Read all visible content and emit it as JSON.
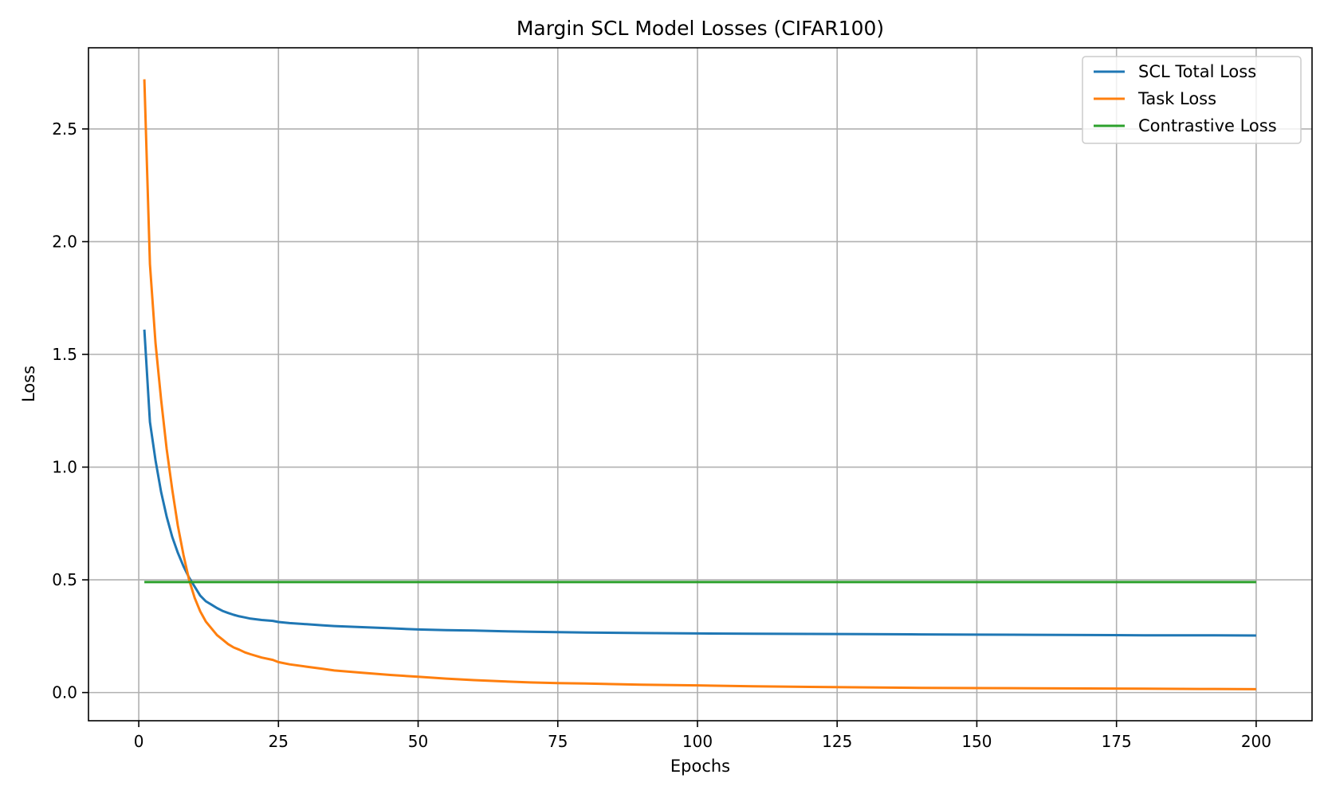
{
  "chart_data": {
    "type": "line",
    "title": "Margin SCL Model Losses (CIFAR100)",
    "xlabel": "Epochs",
    "ylabel": "Loss",
    "xlim": [
      -9,
      210
    ],
    "ylim": [
      -0.125,
      2.86
    ],
    "xticks": [
      0,
      25,
      50,
      75,
      100,
      125,
      150,
      175,
      200
    ],
    "xtick_labels": [
      "0",
      "25",
      "50",
      "75",
      "100",
      "125",
      "150",
      "175",
      "200"
    ],
    "yticks": [
      0.0,
      0.5,
      1.0,
      1.5,
      2.0,
      2.5
    ],
    "ytick_labels": [
      "0.0",
      "0.5",
      "1.0",
      "1.5",
      "2.0",
      "2.5"
    ],
    "grid": true,
    "legend_position": "top-right",
    "series": [
      {
        "name": "SCL Total Loss",
        "color": "#1f77b4",
        "x": [
          1,
          2,
          3,
          4,
          5,
          6,
          7,
          8,
          9,
          10,
          11,
          12,
          13,
          14,
          15,
          16,
          17,
          18,
          19,
          20,
          22,
          24,
          25,
          27,
          30,
          33,
          35,
          40,
          45,
          50,
          55,
          60,
          65,
          70,
          75,
          80,
          90,
          100,
          110,
          120,
          130,
          140,
          150,
          160,
          170,
          180,
          190,
          200
        ],
        "values": [
          1.61,
          1.2,
          1.03,
          0.89,
          0.78,
          0.69,
          0.62,
          0.56,
          0.51,
          0.47,
          0.43,
          0.405,
          0.39,
          0.375,
          0.362,
          0.353,
          0.345,
          0.338,
          0.333,
          0.328,
          0.322,
          0.318,
          0.313,
          0.308,
          0.303,
          0.298,
          0.295,
          0.29,
          0.285,
          0.28,
          0.277,
          0.275,
          0.272,
          0.27,
          0.268,
          0.266,
          0.264,
          0.262,
          0.261,
          0.26,
          0.259,
          0.258,
          0.257,
          0.256,
          0.255,
          0.254,
          0.254,
          0.253
        ]
      },
      {
        "name": "Task Loss",
        "color": "#ff7f0e",
        "x": [
          1,
          2,
          3,
          4,
          5,
          6,
          7,
          8,
          9,
          10,
          11,
          12,
          13,
          14,
          15,
          16,
          17,
          18,
          19,
          20,
          22,
          24,
          25,
          27,
          30,
          33,
          35,
          40,
          45,
          50,
          55,
          60,
          65,
          70,
          75,
          80,
          90,
          100,
          110,
          120,
          130,
          140,
          150,
          160,
          170,
          180,
          190,
          200
        ],
        "values": [
          2.72,
          1.9,
          1.55,
          1.3,
          1.08,
          0.9,
          0.74,
          0.61,
          0.5,
          0.42,
          0.36,
          0.315,
          0.285,
          0.255,
          0.235,
          0.215,
          0.2,
          0.19,
          0.178,
          0.17,
          0.155,
          0.145,
          0.135,
          0.125,
          0.115,
          0.105,
          0.098,
          0.088,
          0.078,
          0.07,
          0.062,
          0.055,
          0.05,
          0.045,
          0.042,
          0.04,
          0.035,
          0.032,
          0.028,
          0.025,
          0.023,
          0.021,
          0.02,
          0.019,
          0.018,
          0.017,
          0.016,
          0.015
        ]
      },
      {
        "name": "Contrastive Loss",
        "color": "#2ca02c",
        "x": [
          1,
          200
        ],
        "values": [
          0.49,
          0.49
        ]
      }
    ]
  }
}
